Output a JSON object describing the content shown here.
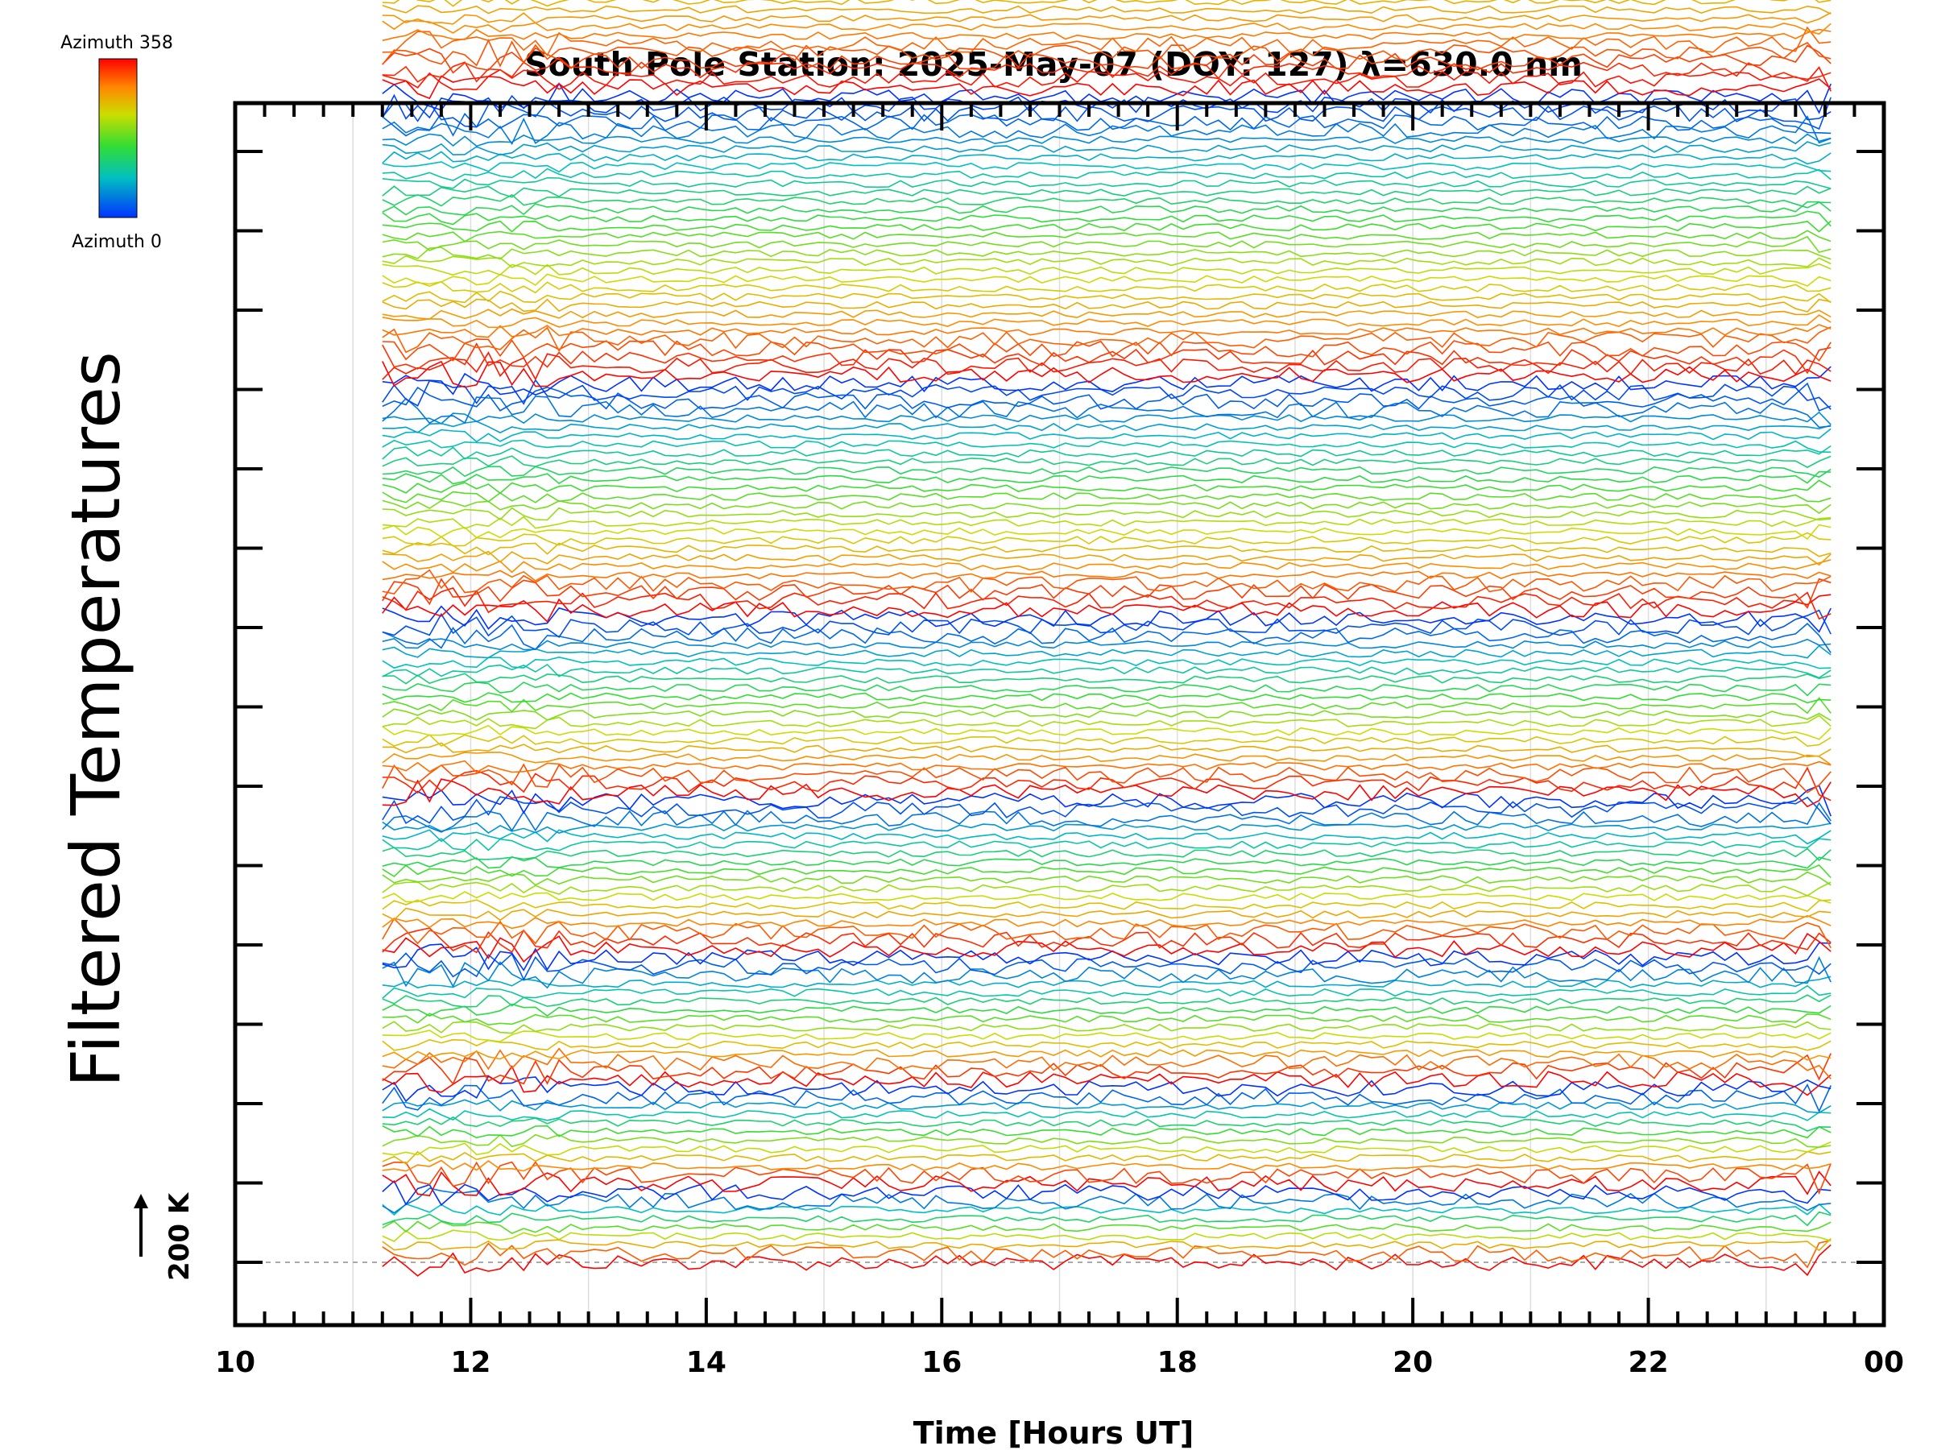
{
  "chart_data": {
    "type": "line",
    "title": "South Pole Station: 2025-May-07 (DOY: 127) λ=630.0 nm",
    "xlabel": "Time [Hours UT]",
    "ylabel": "Filtered Temperatures",
    "xlim": [
      10,
      24
    ],
    "x_ticks": [
      "10",
      "12",
      "14",
      "16",
      "18",
      "20",
      "22",
      "00"
    ],
    "x_range_data": [
      11.25,
      23.6
    ],
    "scale_bar_label": "200 K",
    "colorbar": {
      "top_label": "Azimuth 358",
      "bottom_label": "Azimuth 0"
    },
    "stacked_groups": [
      {
        "group": 1,
        "traces": 9
      },
      {
        "group": 2,
        "traces": 12
      },
      {
        "group": 3,
        "traces": 15
      },
      {
        "group": 4,
        "traces": 18
      },
      {
        "group": 5,
        "traces": 21
      },
      {
        "group": 6,
        "traces": 27
      },
      {
        "group": 7,
        "traces": 33
      },
      {
        "group": 8,
        "traces": 39
      }
    ],
    "series_note_colors": [
      "#0000ff",
      "#00ff66",
      "#ffff00",
      "#ff0000"
    ],
    "grid": "vertical lines at each hour",
    "legend": "colorbar top-left"
  }
}
